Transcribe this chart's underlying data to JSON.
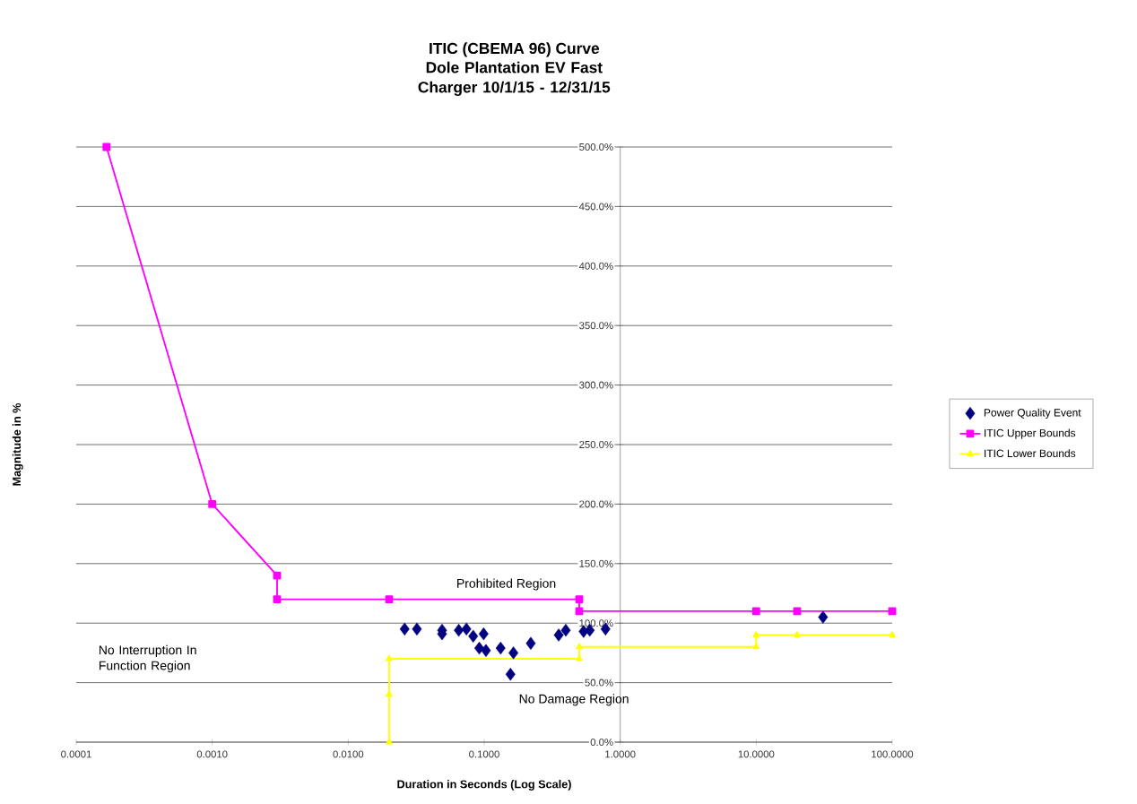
{
  "chart_data": {
    "type": "scatter",
    "title": "ITIC (CBEMA 96) Curve",
    "subtitle": "Dole Plantation EV Fast Charger 10/1/15 - 12/31/15",
    "xlabel": "Duration in Seconds (Log Scale)",
    "ylabel": "Magnitude in %",
    "log": "x",
    "xlim": [
      0.0001,
      100
    ],
    "ylim": [
      0,
      500
    ],
    "xticks": [
      {
        "value": 0.0001,
        "label": "0.0001"
      },
      {
        "value": 0.001,
        "label": "0.0010"
      },
      {
        "value": 0.01,
        "label": "0.0100"
      },
      {
        "value": 0.1,
        "label": "0.1000"
      },
      {
        "value": 1,
        "label": "1.0000"
      },
      {
        "value": 10,
        "label": "10.0000"
      },
      {
        "value": 100,
        "label": "100.0000"
      }
    ],
    "yticks": [
      {
        "value": 0,
        "label": "0.0%"
      },
      {
        "value": 50,
        "label": "50.0%"
      },
      {
        "value": 100,
        "label": "100.0%"
      },
      {
        "value": 150,
        "label": "150.0%"
      },
      {
        "value": 200,
        "label": "200.0%"
      },
      {
        "value": 250,
        "label": "250.0%"
      },
      {
        "value": 300,
        "label": "300.0%"
      },
      {
        "value": 350,
        "label": "350.0%"
      },
      {
        "value": 400,
        "label": "400.0%"
      },
      {
        "value": 450,
        "label": "450.0%"
      },
      {
        "value": 500,
        "label": "500.0%"
      }
    ],
    "grid": "y",
    "legend": "right",
    "series": [
      {
        "name": "Power Quality Event",
        "marker": "diamond",
        "color": "#000080",
        "x": [
          0.026,
          0.032,
          0.049,
          0.049,
          0.065,
          0.074,
          0.083,
          0.099,
          0.092,
          0.103,
          0.132,
          0.164,
          0.156,
          0.22,
          0.353,
          0.398,
          0.538,
          0.597,
          0.78,
          31
        ],
        "values": [
          95,
          95,
          94,
          91,
          94,
          95,
          89,
          91,
          79,
          77,
          79,
          75,
          57,
          83,
          90,
          94,
          93,
          94,
          95,
          105
        ]
      },
      {
        "name": "ITIC Upper Bounds",
        "type": "line",
        "marker": "square",
        "color": "#ff00ff",
        "x": [
          0.000167,
          0.001,
          0.003,
          0.003,
          0.02,
          0.5,
          0.5,
          10,
          20,
          100
        ],
        "values": [
          500,
          200,
          140,
          120,
          120,
          120,
          110,
          110,
          110,
          110
        ]
      },
      {
        "name": "ITIC Lower Bounds",
        "type": "line",
        "marker": "triangle",
        "color": "#ffff00",
        "x": [
          0.02,
          0.02,
          0.02,
          0.5,
          0.5,
          10,
          10,
          20,
          100
        ],
        "values": [
          0,
          40,
          70,
          70,
          80,
          80,
          90,
          90,
          90
        ]
      }
    ],
    "annotations": [
      "Prohibited Region",
      "No Interruption In Function Region",
      "No Damage Region"
    ]
  }
}
